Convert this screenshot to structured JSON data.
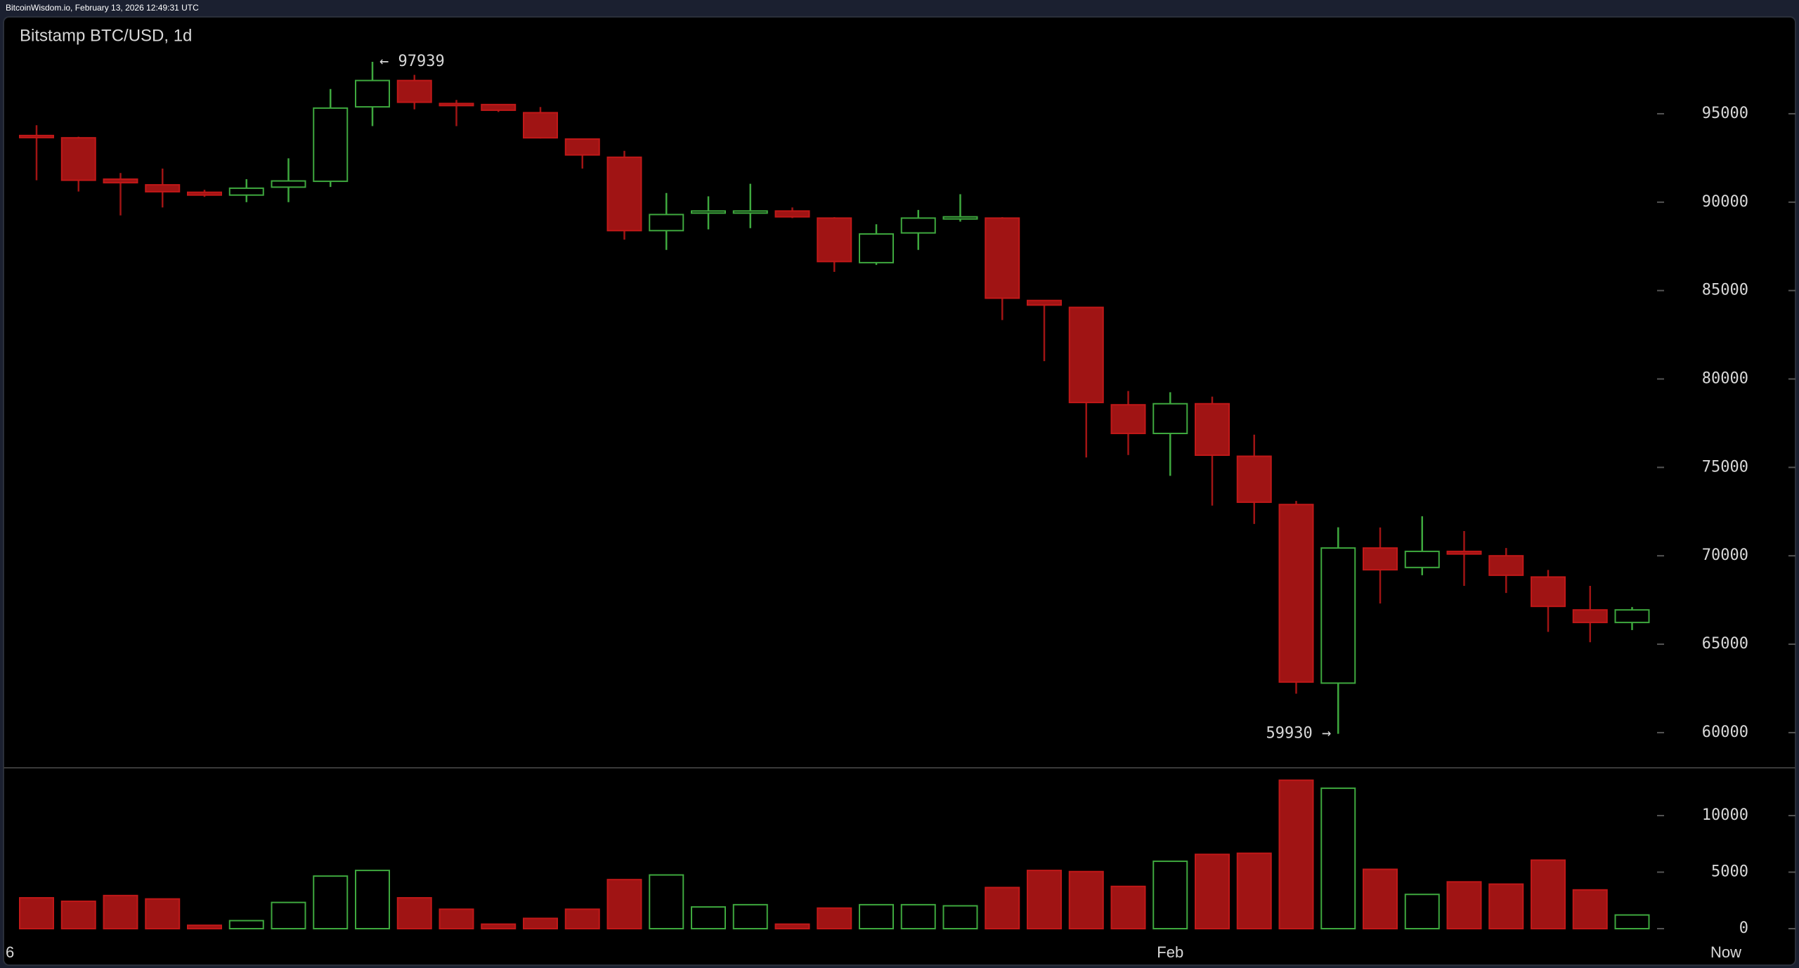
{
  "header": "BitcoinWisdom.io, February 13, 2026 12:49:31 UTC",
  "chart_data": {
    "type": "candlestick",
    "title": "Bitstamp BTC/USD, 1d",
    "up_color": "#3ea83e",
    "down_color": "#a01414",
    "open": [
      93770,
      93640,
      91300,
      90980,
      90560,
      90400,
      90850,
      91180,
      95390,
      96880,
      95580,
      95520,
      95060,
      93570,
      92540,
      88390,
      89400,
      89450,
      89500,
      89100,
      86580,
      88260,
      89100,
      89100,
      84440,
      84050,
      78540,
      76920,
      78600,
      75630,
      72900,
      62800,
      70440,
      69340,
      70250,
      70000,
      68800,
      66940,
      66230
    ],
    "high": [
      94350,
      93700,
      91650,
      91900,
      90700,
      91300,
      92480,
      96400,
      97939,
      97200,
      95780,
      95520,
      95380,
      93570,
      92900,
      90520,
      90330,
      91040,
      89700,
      89150,
      88750,
      89560,
      90450,
      89150,
      84440,
      84050,
      79320,
      79250,
      79000,
      76850,
      73100,
      71610,
      71600,
      72240,
      71400,
      70440,
      69200,
      68300,
      67100
    ],
    "low": [
      91240,
      90600,
      89250,
      89700,
      90300,
      90000,
      90000,
      90860,
      94300,
      95250,
      94300,
      95100,
      93600,
      91900,
      87880,
      87300,
      88460,
      88530,
      89100,
      86060,
      86450,
      87300,
      88900,
      83330,
      81010,
      75560,
      75700,
      74520,
      72840,
      71800,
      62200,
      59930,
      67300,
      68900,
      68300,
      67900,
      65700,
      65110,
      65800
    ],
    "close": [
      93700,
      91240,
      91100,
      90590,
      90400,
      90790,
      91200,
      95320,
      96880,
      95650,
      95500,
      95200,
      93640,
      92670,
      88390,
      89300,
      89500,
      89500,
      89170,
      86640,
      88200,
      89100,
      89170,
      84570,
      84180,
      78670,
      76920,
      78600,
      75690,
      73030,
      62860,
      70440,
      69210,
      70250,
      70100,
      68900,
      67140,
      66230,
      66940
    ],
    "volume": [
      2730,
      2420,
      2930,
      2630,
      300,
      710,
      2320,
      4650,
      5150,
      2730,
      1720,
      400,
      910,
      1720,
      4340,
      4750,
      1920,
      2120,
      400,
      1820,
      2120,
      2120,
      2020,
      3640,
      5150,
      5050,
      3740,
      5960,
      6570,
      6670,
      13130,
      12420,
      5250,
      3030,
      4140,
      3940,
      6060,
      3430,
      1210
    ],
    "ylim": [
      58050,
      100440
    ],
    "yticks": [
      60000,
      65000,
      70000,
      75000,
      80000,
      85000,
      90000,
      95000
    ],
    "y2lim": [
      0,
      14290
    ],
    "y2ticks": [
      0,
      5000,
      10000
    ],
    "x_labels": [
      "6",
      "Feb",
      "Now"
    ],
    "annotations": [
      {
        "label": "← 97939",
        "value": 97939
      },
      {
        "label": "59930 →",
        "value": 59930
      }
    ]
  }
}
